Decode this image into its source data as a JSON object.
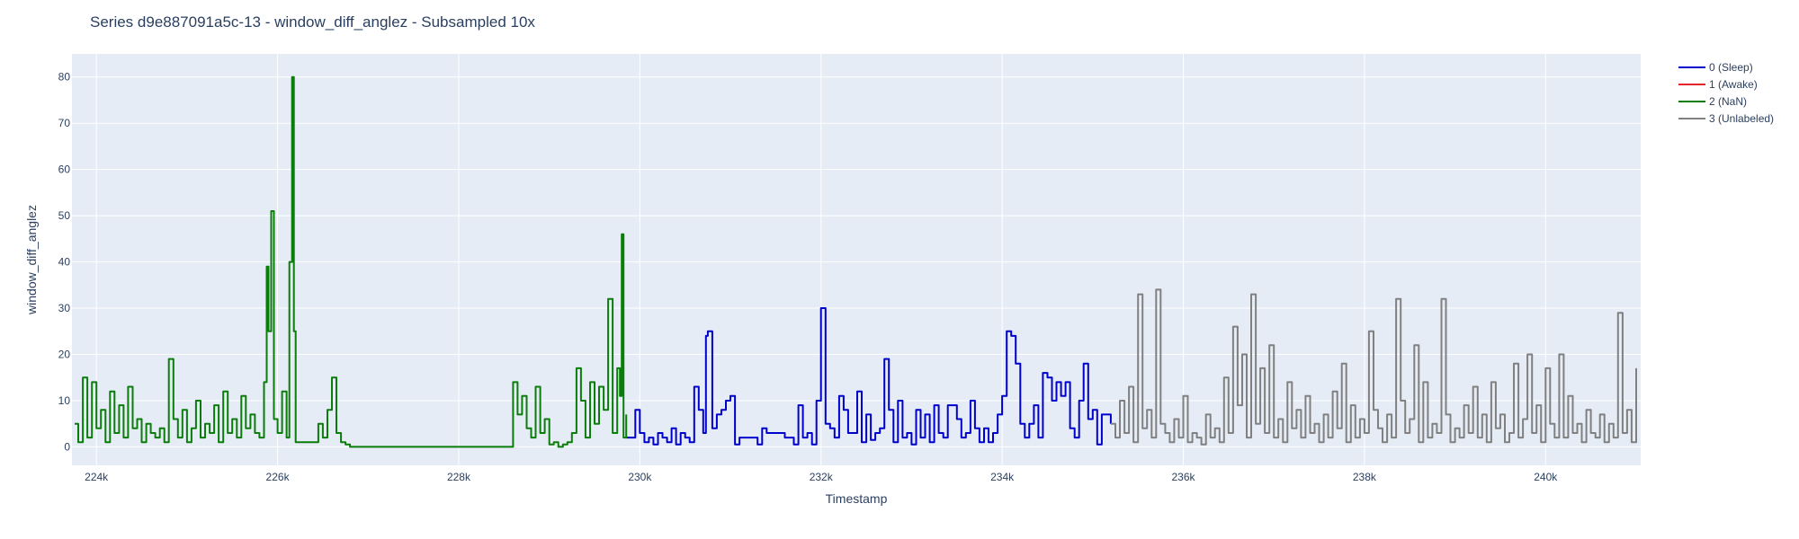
{
  "chart_data": {
    "type": "line",
    "title": "Series d9e887091a5c-13 - window_diff_anglez - Subsampled 10x",
    "xlabel": "Timestamp",
    "ylabel": "window_diff_anglez",
    "xlim": [
      223730,
      241050
    ],
    "ylim": [
      -4,
      85
    ],
    "x_ticks": [
      224000,
      226000,
      228000,
      230000,
      232000,
      234000,
      236000,
      238000,
      240000
    ],
    "x_tick_labels": [
      "224k",
      "226k",
      "228k",
      "230k",
      "232k",
      "234k",
      "236k",
      "238k",
      "240k"
    ],
    "y_ticks": [
      0,
      10,
      20,
      30,
      40,
      50,
      60,
      70,
      80
    ],
    "y_tick_labels": [
      "0",
      "10",
      "20",
      "30",
      "40",
      "50",
      "60",
      "70",
      "80"
    ],
    "grid": true,
    "plot_bg": "#e5ecf6",
    "legend_position": "top-right",
    "series": [
      {
        "name": "0 (Sleep)",
        "color": "#0000cc",
        "x": [
          229850,
          229950,
          230000,
          230050,
          230100,
          230150,
          230200,
          230250,
          230300,
          230350,
          230400,
          230450,
          230500,
          230550,
          230600,
          230650,
          230700,
          230730,
          230750,
          230800,
          230850,
          230900,
          230950,
          231000,
          231050,
          231100,
          231200,
          231300,
          231350,
          231400,
          231500,
          231600,
          231700,
          231750,
          231800,
          231850,
          231900,
          231950,
          232000,
          232050,
          232100,
          232150,
          232200,
          232250,
          232300,
          232350,
          232400,
          232450,
          232500,
          232550,
          232600,
          232650,
          232700,
          232750,
          232800,
          232850,
          232900,
          232950,
          233000,
          233050,
          233100,
          233150,
          233200,
          233250,
          233300,
          233350,
          233400,
          233450,
          233500,
          233550,
          233600,
          233650,
          233700,
          233750,
          233800,
          233850,
          233900,
          233950,
          234000,
          234050,
          234100,
          234150,
          234200,
          234250,
          234300,
          234350,
          234400,
          234450,
          234500,
          234550,
          234600,
          234650,
          234700,
          234750,
          234800,
          234850,
          234900,
          234950,
          235000,
          235050,
          235100,
          235150,
          235200
        ],
        "y": [
          2,
          8,
          3,
          1,
          2,
          0.5,
          3,
          2,
          1,
          4,
          0.5,
          3,
          2,
          1,
          13,
          8,
          3,
          24,
          25,
          4,
          7,
          8,
          10,
          11,
          0.5,
          2,
          2,
          0.5,
          4,
          3,
          3,
          2,
          0.5,
          9,
          2,
          3,
          0.5,
          10,
          30,
          5,
          4,
          2,
          11,
          8,
          3,
          3,
          12,
          1,
          7,
          1.5,
          3,
          4,
          19,
          8,
          1,
          10,
          2,
          3,
          0.5,
          8,
          2,
          7,
          1,
          9,
          3,
          2,
          9,
          9,
          6,
          2,
          3,
          10,
          4,
          1,
          4,
          1,
          3,
          7,
          11,
          25,
          24,
          18,
          5,
          2,
          5,
          9,
          2,
          16,
          15,
          10,
          14,
          11,
          14,
          4,
          2,
          10,
          18,
          6,
          8,
          0.5,
          7,
          7,
          5
        ]
      },
      {
        "name": "1 (Awake)",
        "color": "#e8212b",
        "x": [],
        "y": []
      },
      {
        "name": "2 (NaN)",
        "color": "#0a7d0a",
        "x": [
          223760,
          223800,
          223850,
          223900,
          223950,
          224000,
          224050,
          224100,
          224150,
          224200,
          224250,
          224300,
          224350,
          224400,
          224450,
          224500,
          224550,
          224600,
          224650,
          224700,
          224750,
          224800,
          224850,
          224900,
          224950,
          225000,
          225050,
          225100,
          225150,
          225200,
          225250,
          225300,
          225350,
          225400,
          225450,
          225500,
          225550,
          225600,
          225650,
          225700,
          225750,
          225800,
          225850,
          225880,
          225900,
          225930,
          225960,
          226000,
          226050,
          226100,
          226130,
          226160,
          226180,
          226200,
          226300,
          226400,
          226450,
          226500,
          226550,
          226600,
          226650,
          226700,
          226750,
          226800,
          227000,
          227500,
          228000,
          228500,
          228600,
          228650,
          228700,
          228750,
          228800,
          228850,
          228900,
          228950,
          229000,
          229050,
          229100,
          229150,
          229200,
          229250,
          229300,
          229350,
          229400,
          229450,
          229500,
          229550,
          229600,
          229650,
          229700,
          229750,
          229780,
          229800,
          229820,
          229850
        ],
        "y": [
          5,
          1,
          15,
          2,
          14,
          4,
          8,
          1,
          12,
          3,
          9,
          2,
          13,
          4,
          6,
          1,
          5,
          3,
          2,
          4,
          1,
          19,
          6,
          2,
          8,
          1,
          4,
          10,
          2,
          5,
          3,
          9,
          1,
          12,
          3,
          6,
          2,
          11,
          4,
          7,
          3,
          2,
          14,
          39,
          25,
          51,
          6,
          3,
          12,
          2,
          40,
          80,
          25,
          1,
          1,
          1,
          5,
          2,
          8,
          15,
          3,
          1,
          0.5,
          0,
          0,
          0,
          0,
          0,
          14,
          7,
          11,
          4,
          2,
          13,
          3,
          6,
          0.5,
          1,
          0,
          0.5,
          1,
          3,
          17,
          10,
          2,
          14,
          5,
          13,
          8,
          32,
          3,
          17,
          11,
          46,
          2,
          7
        ]
      },
      {
        "name": "3 (Unlabeled)",
        "color": "#808080",
        "x": [
          235200,
          235250,
          235300,
          235350,
          235400,
          235450,
          235500,
          235550,
          235600,
          235650,
          235700,
          235750,
          235800,
          235850,
          235900,
          235950,
          236000,
          236050,
          236100,
          236150,
          236200,
          236250,
          236300,
          236350,
          236400,
          236450,
          236500,
          236550,
          236600,
          236650,
          236700,
          236750,
          236800,
          236850,
          236900,
          236950,
          237000,
          237050,
          237100,
          237150,
          237200,
          237250,
          237300,
          237350,
          237400,
          237450,
          237500,
          237550,
          237600,
          237650,
          237700,
          237750,
          237800,
          237850,
          237900,
          237950,
          238000,
          238050,
          238100,
          238150,
          238200,
          238250,
          238300,
          238350,
          238400,
          238450,
          238500,
          238550,
          238600,
          238650,
          238700,
          238750,
          238800,
          238850,
          238900,
          238950,
          239000,
          239050,
          239100,
          239150,
          239200,
          239250,
          239300,
          239350,
          239400,
          239450,
          239500,
          239550,
          239600,
          239650,
          239700,
          239750,
          239800,
          239850,
          239900,
          239950,
          240000,
          240050,
          240100,
          240150,
          240200,
          240250,
          240300,
          240350,
          240400,
          240450,
          240500,
          240550,
          240600,
          240650,
          240700,
          240750,
          240800,
          240850,
          240900,
          240950,
          241000
        ],
        "y": [
          5,
          2,
          10,
          3,
          13,
          1,
          33,
          4,
          8,
          2,
          34,
          5,
          3,
          1,
          6,
          2,
          11,
          1,
          3,
          2,
          0.5,
          7,
          2,
          4,
          1,
          15,
          3,
          26,
          9,
          20,
          2,
          33,
          5,
          17,
          3,
          22,
          2,
          6,
          1,
          14,
          4,
          8,
          2,
          11,
          3,
          5,
          1,
          7,
          2,
          12,
          4,
          18,
          1,
          9,
          2,
          6,
          3,
          25,
          8,
          4,
          1,
          7,
          2,
          32,
          10,
          3,
          6,
          22,
          1,
          14,
          2,
          5,
          3,
          32,
          7,
          1,
          4,
          2,
          9,
          3,
          13,
          2,
          7,
          1,
          14,
          4,
          7,
          1,
          3,
          18,
          2,
          6,
          20,
          3,
          9,
          1,
          17,
          5,
          2,
          20,
          2,
          11,
          3,
          5,
          1,
          8,
          3,
          2,
          7,
          1,
          5,
          2,
          29,
          3,
          8,
          1,
          17
        ]
      }
    ]
  }
}
